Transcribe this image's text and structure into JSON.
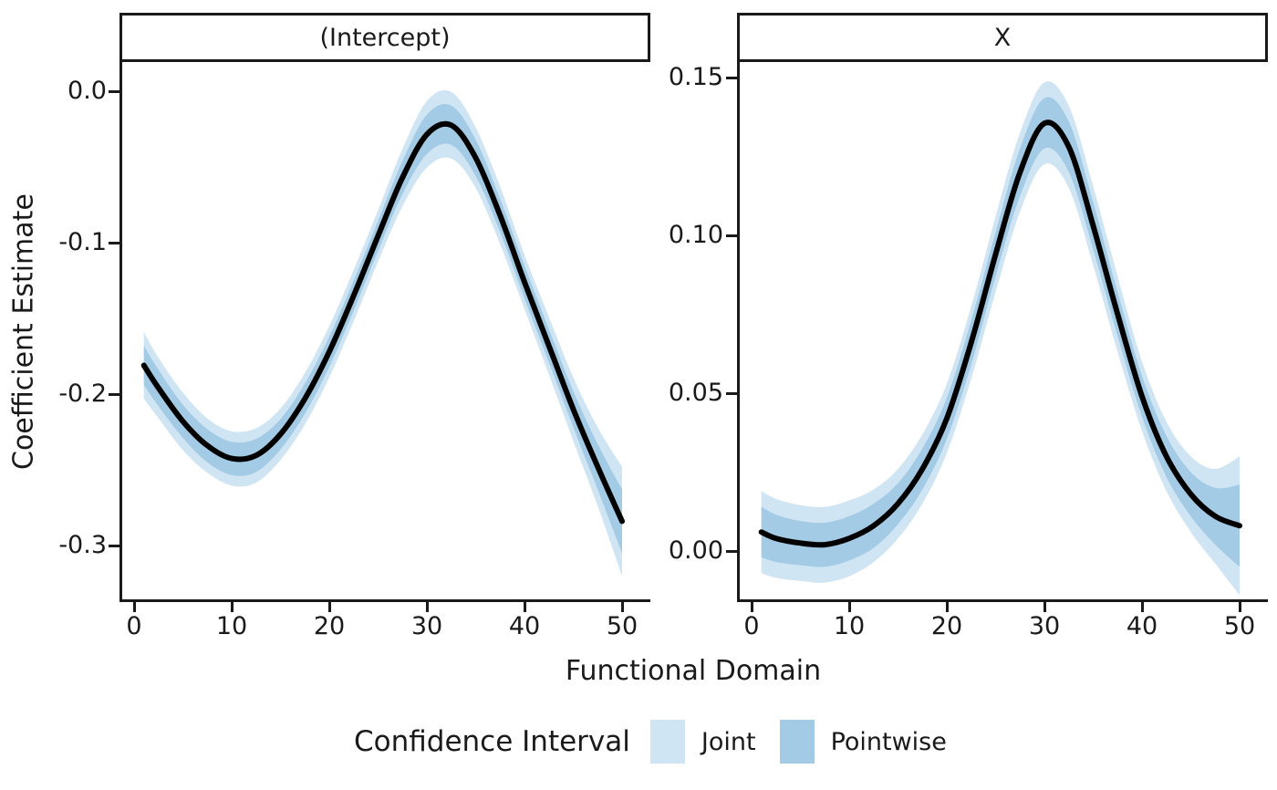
{
  "figure": {
    "y_axis_title": "Coefficient Estimate",
    "x_axis_title": "Functional Domain",
    "background_color": "#ffffff",
    "axis_color": "#1a1a1a",
    "curve_color": "#000000"
  },
  "legend": {
    "title": "Confidence Interval",
    "items": [
      {
        "label": "Joint",
        "color": "#d0e5f3"
      },
      {
        "label": "Pointwise",
        "color": "#a3cbe5"
      }
    ]
  },
  "chart_data": [
    {
      "type": "line",
      "facet_label": "(Intercept)",
      "xlabel": "Functional Domain",
      "ylabel": "Coefficient Estimate",
      "x_ticks": [
        0,
        10,
        20,
        30,
        40,
        50
      ],
      "x_tick_labels": [
        "0",
        "10",
        "20",
        "30",
        "40",
        "50"
      ],
      "y_ticks": [
        0.0,
        -0.1,
        -0.2,
        -0.3
      ],
      "y_tick_labels": [
        "0.0",
        "-0.1",
        "-0.2",
        "-0.3"
      ],
      "xlim": [
        -1.3,
        52.7
      ],
      "ylim": [
        -0.337,
        0.019
      ],
      "x": [
        1,
        2.5,
        5,
        7.5,
        10,
        12.5,
        15,
        17.5,
        20,
        22.5,
        25,
        27.5,
        30,
        32.5,
        35,
        37.5,
        40,
        42.5,
        45,
        47.5,
        50
      ],
      "estimate": [
        -0.181,
        -0.196,
        -0.218,
        -0.234,
        -0.2425,
        -0.2405,
        -0.2265,
        -0.203,
        -0.172,
        -0.135,
        -0.0955,
        -0.057,
        -0.0285,
        -0.0225,
        -0.044,
        -0.082,
        -0.126,
        -0.168,
        -0.21,
        -0.248,
        -0.284
      ],
      "pointwise_halfwidth": [
        0.013,
        0.012,
        0.011,
        0.011,
        0.011,
        0.011,
        0.01,
        0.01,
        0.01,
        0.01,
        0.01,
        0.011,
        0.013,
        0.013,
        0.012,
        0.011,
        0.011,
        0.011,
        0.012,
        0.015,
        0.021
      ],
      "joint_halfwidth": [
        0.022,
        0.02,
        0.019,
        0.018,
        0.018,
        0.018,
        0.017,
        0.017,
        0.017,
        0.017,
        0.017,
        0.019,
        0.022,
        0.022,
        0.02,
        0.019,
        0.018,
        0.019,
        0.021,
        0.026,
        0.036
      ]
    },
    {
      "type": "line",
      "facet_label": "X",
      "xlabel": "Functional Domain",
      "ylabel": "Coefficient Estimate",
      "x_ticks": [
        0,
        10,
        20,
        30,
        40,
        50
      ],
      "x_tick_labels": [
        "0",
        "10",
        "20",
        "30",
        "40",
        "50"
      ],
      "y_ticks": [
        0.15,
        0.1,
        0.05,
        0.0
      ],
      "y_tick_labels": [
        "0.15",
        "0.10",
        "0.05",
        "0.00"
      ],
      "xlim": [
        -1.3,
        52.7
      ],
      "ylim": [
        -0.0162,
        0.155
      ],
      "x": [
        1,
        2.5,
        5,
        7.5,
        10,
        12.5,
        15,
        17.5,
        20,
        22.5,
        25,
        27.5,
        30,
        32.5,
        35,
        37.5,
        40,
        42.5,
        45,
        47.5,
        50
      ],
      "estimate": [
        0.006,
        0.004,
        0.0025,
        0.002,
        0.004,
        0.008,
        0.015,
        0.026,
        0.042,
        0.066,
        0.094,
        0.12,
        0.1355,
        0.128,
        0.103,
        0.075,
        0.049,
        0.03,
        0.018,
        0.011,
        0.008
      ],
      "pointwise_halfwidth": [
        0.008,
        0.0075,
        0.007,
        0.007,
        0.007,
        0.007,
        0.0065,
        0.0065,
        0.0065,
        0.007,
        0.007,
        0.0075,
        0.008,
        0.008,
        0.0075,
        0.007,
        0.0065,
        0.0065,
        0.007,
        0.009,
        0.013
      ],
      "joint_halfwidth": [
        0.013,
        0.0125,
        0.012,
        0.012,
        0.012,
        0.0115,
        0.011,
        0.011,
        0.011,
        0.0115,
        0.012,
        0.0125,
        0.013,
        0.013,
        0.0125,
        0.012,
        0.011,
        0.011,
        0.012,
        0.015,
        0.022
      ]
    }
  ]
}
